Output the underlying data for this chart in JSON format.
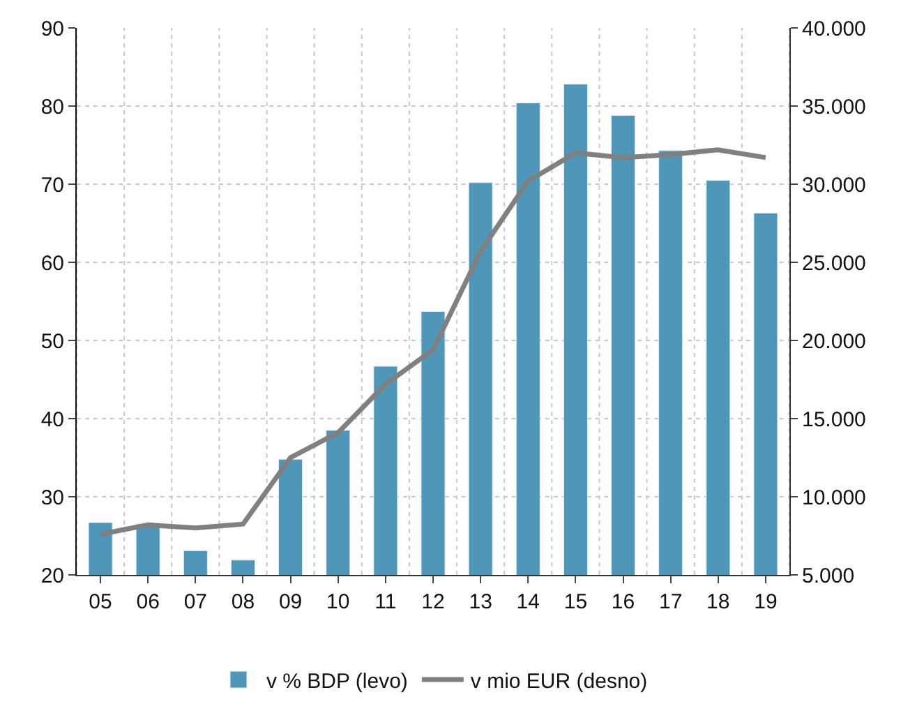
{
  "chart_data": {
    "type": "bar",
    "categories": [
      "05",
      "06",
      "07",
      "08",
      "09",
      "10",
      "11",
      "12",
      "13",
      "14",
      "15",
      "16",
      "17",
      "18",
      "19"
    ],
    "series": [
      {
        "name": "v % BDP (levo)",
        "color": "#4f97b8",
        "values": [
          26.7,
          26.5,
          23.1,
          21.9,
          34.8,
          38.5,
          46.7,
          53.7,
          70.2,
          80.4,
          82.8,
          78.8,
          74.3,
          70.5,
          66.3
        ]
      },
      {
        "name": "v mio EUR (desno)",
        "type": "line",
        "axis": "y2",
        "color": "#808080",
        "values": [
          7600,
          8200,
          8000,
          8250,
          12500,
          14100,
          17200,
          19400,
          25700,
          30200,
          32000,
          31700,
          31900,
          32200,
          31700
        ]
      }
    ],
    "ylim": [
      20,
      90
    ],
    "yticks": [
      20,
      30,
      40,
      50,
      60,
      70,
      80,
      90
    ],
    "y2lim": [
      5000,
      40000
    ],
    "y2ticks": [
      {
        "value": 5000,
        "label": "5.000"
      },
      {
        "value": 10000,
        "label": "10.000"
      },
      {
        "value": 15000,
        "label": "15.000"
      },
      {
        "value": 20000,
        "label": "20.000"
      },
      {
        "value": 25000,
        "label": "25.000"
      },
      {
        "value": 30000,
        "label": "30.000"
      },
      {
        "value": 35000,
        "label": "35.000"
      },
      {
        "value": 40000,
        "label": "40.000"
      }
    ],
    "grid": true,
    "legend": "bottom",
    "marker": "none",
    "line_style": "solid"
  }
}
